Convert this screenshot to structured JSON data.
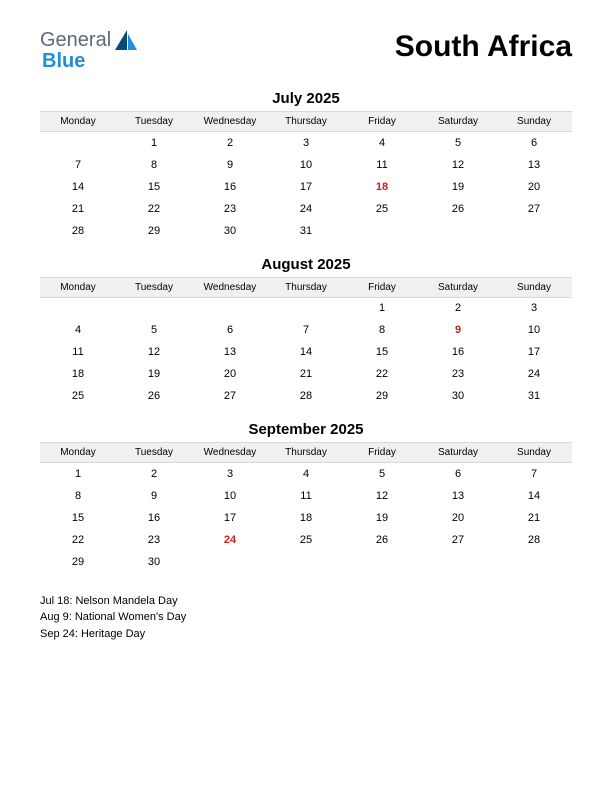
{
  "logo": {
    "general": "General",
    "blue": "Blue"
  },
  "title": "South Africa",
  "colors": {
    "header_bg": "#f0f0f0",
    "holiday": "#d02020",
    "logo_gray": "#5a6a7a",
    "logo_blue": "#1f8fd6",
    "sail_dark": "#0a4a7a",
    "sail_light": "#1f8fd6"
  },
  "day_headers": [
    "Monday",
    "Tuesday",
    "Wednesday",
    "Thursday",
    "Friday",
    "Saturday",
    "Sunday"
  ],
  "months": [
    {
      "title": "July 2025",
      "weeks": [
        [
          "",
          "1",
          "2",
          "3",
          "4",
          "5",
          "6"
        ],
        [
          "7",
          "8",
          "9",
          "10",
          "11",
          "12",
          "13"
        ],
        [
          "14",
          "15",
          "16",
          "17",
          "18",
          "19",
          "20"
        ],
        [
          "21",
          "22",
          "23",
          "24",
          "25",
          "26",
          "27"
        ],
        [
          "28",
          "29",
          "30",
          "31",
          "",
          "",
          ""
        ]
      ],
      "holidays": [
        "18"
      ]
    },
    {
      "title": "August 2025",
      "weeks": [
        [
          "",
          "",
          "",
          "",
          "1",
          "2",
          "3"
        ],
        [
          "4",
          "5",
          "6",
          "7",
          "8",
          "9",
          "10"
        ],
        [
          "11",
          "12",
          "13",
          "14",
          "15",
          "16",
          "17"
        ],
        [
          "18",
          "19",
          "20",
          "21",
          "22",
          "23",
          "24"
        ],
        [
          "25",
          "26",
          "27",
          "28",
          "29",
          "30",
          "31"
        ]
      ],
      "holidays": [
        "9"
      ]
    },
    {
      "title": "September 2025",
      "weeks": [
        [
          "1",
          "2",
          "3",
          "4",
          "5",
          "6",
          "7"
        ],
        [
          "8",
          "9",
          "10",
          "11",
          "12",
          "13",
          "14"
        ],
        [
          "15",
          "16",
          "17",
          "18",
          "19",
          "20",
          "21"
        ],
        [
          "22",
          "23",
          "24",
          "25",
          "26",
          "27",
          "28"
        ],
        [
          "29",
          "30",
          "",
          "",
          "",
          "",
          ""
        ]
      ],
      "holidays": [
        "24"
      ]
    }
  ],
  "holiday_list": [
    "Jul 18: Nelson Mandela Day",
    "Aug 9: National Women's Day",
    "Sep 24: Heritage Day"
  ]
}
